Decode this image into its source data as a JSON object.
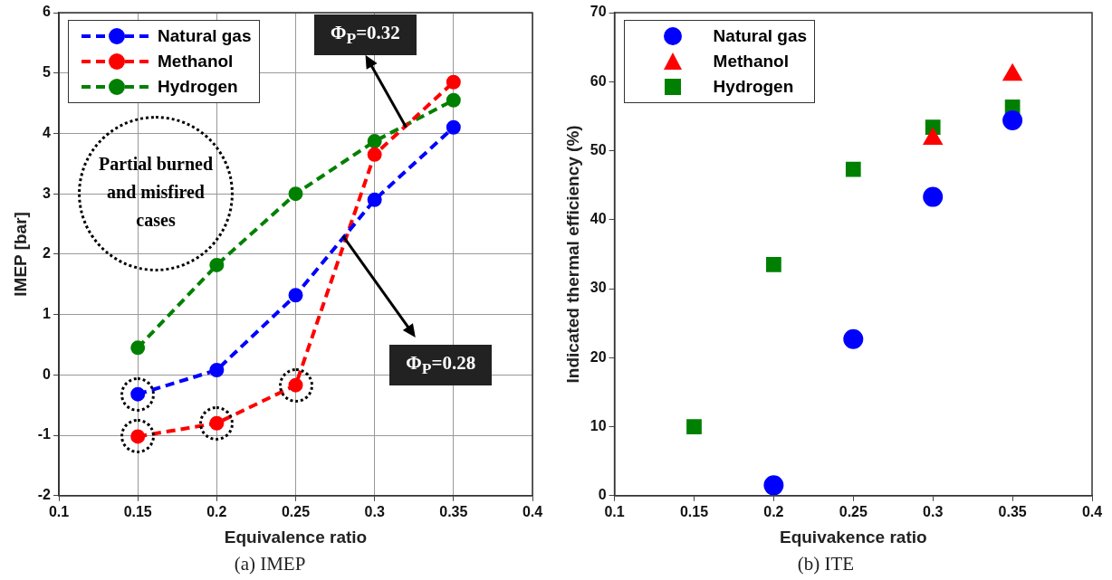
{
  "chart_data": [
    {
      "type": "line",
      "title": "(a) IMEP",
      "xlabel": "Equivalence ratio",
      "ylabel": "IMEP [bar]",
      "x": [
        0.15,
        0.2,
        0.25,
        0.3,
        0.35
      ],
      "series": [
        {
          "name": "Natural gas",
          "color": "#0000ff",
          "values": [
            -0.32,
            0.08,
            1.32,
            2.9,
            4.1
          ]
        },
        {
          "name": "Methanol",
          "color": "#ff0000",
          "values": [
            -1.02,
            -0.8,
            -0.17,
            3.65,
            4.85
          ]
        },
        {
          "name": "Hydrogen",
          "color": "#008000",
          "values": [
            0.45,
            1.82,
            3.0,
            3.87,
            4.55
          ]
        }
      ],
      "xlim": [
        0.1,
        0.4
      ],
      "xticks": [
        0.1,
        0.15,
        0.2,
        0.25,
        0.3,
        0.35,
        0.4
      ],
      "ylim": [
        -2,
        6
      ],
      "yticks": [
        -2,
        -1,
        0,
        1,
        2,
        3,
        4,
        5,
        6
      ],
      "grid": true,
      "legend": "top left",
      "marker": "circle",
      "line_style": "dashed",
      "annotations": [
        "Partial burned and misfired cases",
        {
          "text": "Φ$_{P}$=0.32",
          "x": 0.32,
          "y": 4.1
        },
        {
          "text": "Φ$_{P}$=0.28",
          "x": 0.28,
          "y": 2.3
        }
      ]
    },
    {
      "type": "scatter",
      "title": "(b) ITE",
      "xlabel": "Equivakence ratio",
      "ylabel": "Indicated thermal efficiency (%)",
      "series": [
        {
          "name": "Natural gas",
          "color": "#0000ff",
          "marker": "circle",
          "x": [
            0.2,
            0.25,
            0.3,
            0.35
          ],
          "values": [
            1.5,
            22.7,
            43.3,
            54.4
          ]
        },
        {
          "name": "Methanol",
          "color": "#ff0000",
          "marker": "triangle",
          "x": [
            0.3,
            0.35
          ],
          "values": [
            51.7,
            61
          ]
        },
        {
          "name": "Hydrogen",
          "color": "#008000",
          "marker": "square",
          "x": [
            0.15,
            0.2,
            0.25,
            0.3,
            0.35
          ],
          "values": [
            10,
            33.5,
            47.3,
            53.4,
            56.3
          ]
        }
      ],
      "xlim": [
        0.1,
        0.4
      ],
      "xticks": [
        0.1,
        0.15,
        0.2,
        0.25,
        0.3,
        0.35,
        0.4
      ],
      "ylim": [
        0,
        70
      ],
      "yticks": [
        0,
        10,
        20,
        30,
        40,
        50,
        60,
        70
      ],
      "legend": "top left"
    }
  ]
}
